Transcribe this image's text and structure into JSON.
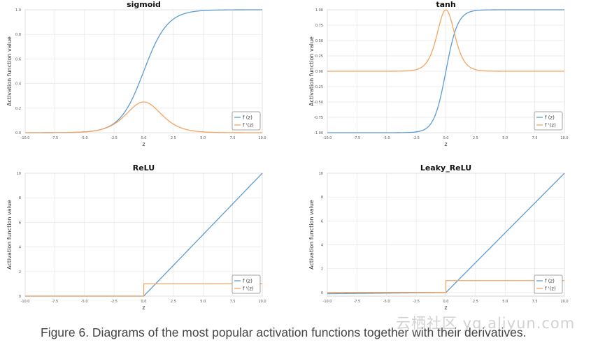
{
  "chart_data": [
    {
      "type": "line",
      "title": "sigmoid",
      "xlabel": "z",
      "ylabel": "Activation function value",
      "xlim": [
        -10,
        10
      ],
      "ylim": [
        0,
        1
      ],
      "xticks": [
        -10,
        -7.5,
        -5,
        -2.5,
        0,
        2.5,
        5,
        7.5,
        10
      ],
      "xtick_labels": [
        "-10.0",
        "-7.5",
        "-5.0",
        "-2.5",
        "0.0",
        "2.5",
        "5.0",
        "7.5",
        "10.0"
      ],
      "yticks": [
        0,
        0.2,
        0.4,
        0.6,
        0.8,
        1.0
      ],
      "ytick_labels": [
        "0.0",
        "0.2",
        "0.4",
        "0.6",
        "0.8",
        "1.0"
      ],
      "grid": true,
      "legend_position": "lower-right",
      "series": [
        {
          "name": "f (z)",
          "color": "#5b9bd5",
          "fn": "sigmoid"
        },
        {
          "name": "f '(z)",
          "color": "#f4a460",
          "fn": "sigmoid_deriv"
        }
      ]
    },
    {
      "type": "line",
      "title": "tanh",
      "xlabel": "z",
      "ylabel": "Activation function value",
      "xlim": [
        -10,
        10
      ],
      "ylim": [
        -1,
        1
      ],
      "xticks": [
        -10,
        -7.5,
        -5,
        -2.5,
        0,
        2.5,
        5,
        7.5,
        10
      ],
      "xtick_labels": [
        "-10.0",
        "-7.5",
        "-5.0",
        "-2.5",
        "0.0",
        "2.5",
        "5.0",
        "7.5",
        "10.0"
      ],
      "yticks": [
        -1,
        -0.75,
        -0.5,
        -0.25,
        0,
        0.25,
        0.5,
        0.75,
        1
      ],
      "ytick_labels": [
        "-1.00",
        "-0.75",
        "-0.50",
        "-0.25",
        "0.00",
        "0.25",
        "0.50",
        "0.75",
        "1.00"
      ],
      "grid": true,
      "legend_position": "lower-right",
      "series": [
        {
          "name": "f (z)",
          "color": "#5b9bd5",
          "fn": "tanh"
        },
        {
          "name": "f '(z)",
          "color": "#f4a460",
          "fn": "tanh_deriv"
        }
      ]
    },
    {
      "type": "line",
      "title": "ReLU",
      "xlabel": "z",
      "ylabel": "Activation function value",
      "xlim": [
        -10,
        10
      ],
      "ylim": [
        0,
        10
      ],
      "xticks": [
        -10,
        -7.5,
        -5,
        -2.5,
        0,
        2.5,
        5,
        7.5,
        10
      ],
      "xtick_labels": [
        "-10.0",
        "-7.5",
        "-5.0",
        "-2.5",
        "0.0",
        "2.5",
        "5.0",
        "7.5",
        "10.0"
      ],
      "yticks": [
        0,
        2,
        4,
        6,
        8,
        10
      ],
      "ytick_labels": [
        "0",
        "2",
        "4",
        "6",
        "8",
        "10"
      ],
      "grid": true,
      "legend_position": "lower-right",
      "series": [
        {
          "name": "f (z)",
          "color": "#5b9bd5",
          "fn": "relu"
        },
        {
          "name": "f '(z)",
          "color": "#f4a460",
          "fn": "relu_deriv"
        }
      ]
    },
    {
      "type": "line",
      "title": "Leaky_ReLU",
      "xlabel": "z",
      "ylabel": "Activation function value",
      "xlim": [
        -10,
        10
      ],
      "ylim": [
        -0.3,
        10
      ],
      "xticks": [
        -10,
        -7.5,
        -5,
        -2.5,
        0,
        2.5,
        5,
        7.5,
        10
      ],
      "xtick_labels": [
        "-10.0",
        "-7.5",
        "-5.0",
        "-2.5",
        "0.0",
        "2.5",
        "5.0",
        "7.5",
        "10.0"
      ],
      "yticks": [
        0,
        2,
        4,
        6,
        8,
        10
      ],
      "ytick_labels": [
        "0",
        "2",
        "4",
        "6",
        "8",
        "10"
      ],
      "grid": true,
      "legend_position": "lower-right",
      "series": [
        {
          "name": "f (z)",
          "color": "#5b9bd5",
          "fn": "leaky_relu"
        },
        {
          "name": "f '(z)",
          "color": "#f4a460",
          "fn": "leaky_relu_deriv"
        }
      ]
    }
  ],
  "caption": "Figure 6. Diagrams of the most popular activation functions together with their derivatives.",
  "watermark": "云栖社区 yq.aliyun.com"
}
